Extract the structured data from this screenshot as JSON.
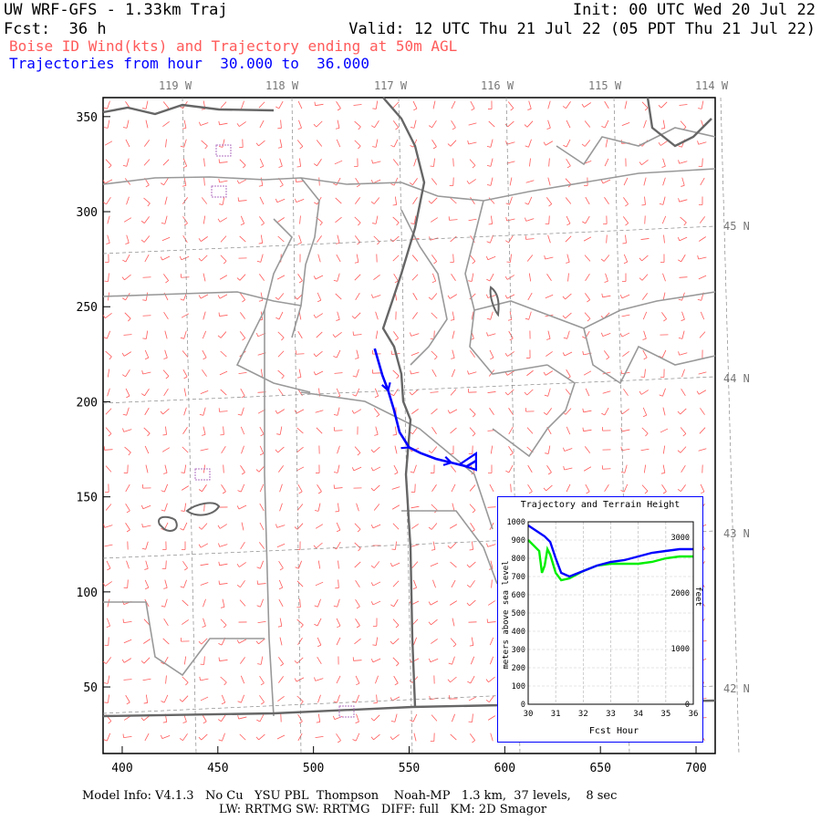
{
  "header": {
    "title": "UW WRF-GFS - 1.33km Traj",
    "init": "Init: 00 UTC Wed 20 Jul 22",
    "fcst": "Fcst:  36 h",
    "valid": "Valid: 12 UTC Thu 21 Jul 22 (05 PDT Thu 21 Jul 22)",
    "subtitle": "Boise ID Wind(kts) and Trajectory ending at 50m AGL",
    "traj_range": "Trajectories from hour  30.000 to  36.000"
  },
  "map": {
    "lon_labels": [
      "119 W",
      "118 W",
      "117 W",
      "116 W",
      "115 W",
      "114 W"
    ],
    "lat_labels": [
      "45 N",
      "44 N",
      "43 N",
      "42 N"
    ],
    "x_ticks": [
      "400",
      "450",
      "500",
      "550",
      "600",
      "650",
      "700"
    ],
    "y_ticks": [
      "350",
      "300",
      "250",
      "200",
      "150",
      "100",
      "50"
    ],
    "trajectory_points": [
      [
        532,
        228
      ],
      [
        536,
        214
      ],
      [
        539,
        206
      ],
      [
        542,
        196
      ],
      [
        545,
        184
      ],
      [
        550,
        176
      ],
      [
        556,
        173
      ],
      [
        564,
        170
      ],
      [
        572,
        168
      ],
      [
        580,
        166
      ],
      [
        585,
        169
      ]
    ],
    "colors": {
      "wind": "#ff5a5a",
      "trajectory": "#0000ff",
      "terrain": "#00ee00",
      "boundaries": "#999999",
      "coast": "#666666",
      "water": "#b070c0"
    }
  },
  "inset": {
    "title": "Trajectory and Terrain Height",
    "ylabel_left": "meters above sea level",
    "ylabel_right": "feet",
    "xlabel": "Fcst Hour",
    "x_ticks": [
      "30",
      "31",
      "32",
      "33",
      "34",
      "35",
      "36"
    ],
    "y_ticks_left": [
      "0",
      "100",
      "200",
      "300",
      "400",
      "500",
      "600",
      "700",
      "800",
      "900",
      "1000"
    ],
    "y_ticks_right": [
      "0",
      "1000",
      "2000",
      "3000"
    ]
  },
  "chart_data": {
    "type": "line",
    "title": "Trajectory and Terrain Height",
    "xlabel": "Fcst Hour",
    "ylabel": "meters above sea level",
    "xlim": [
      30,
      36
    ],
    "ylim": [
      0,
      1000
    ],
    "grid": true,
    "series": [
      {
        "name": "",
        "color": "#0000ff",
        "x": [
          30.0,
          30.2,
          30.4,
          30.6,
          30.8,
          31.0,
          31.2,
          31.5,
          32.0,
          32.5,
          33.0,
          33.5,
          34.0,
          34.5,
          35.0,
          35.5,
          36.0
        ],
        "values": [
          980,
          960,
          940,
          920,
          890,
          800,
          720,
          700,
          730,
          760,
          780,
          790,
          810,
          830,
          840,
          850,
          850
        ]
      },
      {
        "name": "",
        "color": "#00ee00",
        "x": [
          30.0,
          30.2,
          30.4,
          30.5,
          30.6,
          30.7,
          30.8,
          31.0,
          31.2,
          31.5,
          32.0,
          32.5,
          33.0,
          33.5,
          34.0,
          34.5,
          35.0,
          35.5,
          36.0
        ],
        "values": [
          900,
          870,
          840,
          720,
          760,
          850,
          820,
          720,
          680,
          690,
          730,
          760,
          770,
          770,
          770,
          780,
          800,
          810,
          810
        ]
      }
    ]
  },
  "footer": {
    "line1": "Model Info: V4.1.3   No Cu   YSU PBL  Thompson    Noah-MP   1.3 km,  37 levels,    8 sec",
    "line2": "LW: RRTMG SW: RRTMG   DIFF: full   KM: 2D Smagor"
  }
}
